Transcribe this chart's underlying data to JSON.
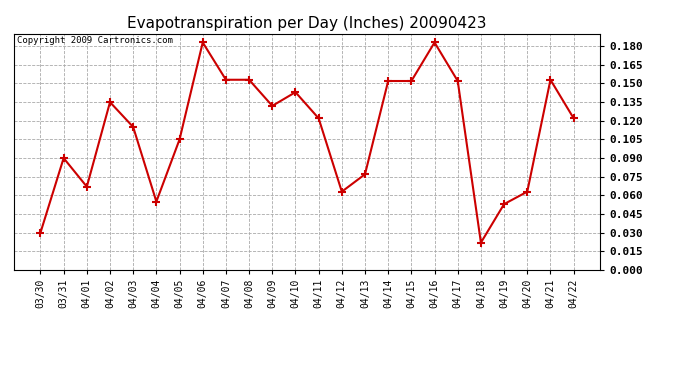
{
  "title": "Evapotranspiration per Day (Inches) 20090423",
  "copyright_text": "Copyright 2009 Cartronics.com",
  "dates": [
    "03/30",
    "03/31",
    "04/01",
    "04/02",
    "04/03",
    "04/04",
    "04/05",
    "04/06",
    "04/07",
    "04/08",
    "04/09",
    "04/10",
    "04/11",
    "04/12",
    "04/13",
    "04/14",
    "04/15",
    "04/16",
    "04/17",
    "04/18",
    "04/19",
    "04/20",
    "04/21",
    "04/22"
  ],
  "values": [
    0.03,
    0.09,
    0.067,
    0.135,
    0.115,
    0.055,
    0.105,
    0.183,
    0.153,
    0.153,
    0.132,
    0.143,
    0.122,
    0.063,
    0.077,
    0.152,
    0.152,
    0.183,
    0.152,
    0.022,
    0.053,
    0.063,
    0.153,
    0.122
  ],
  "line_color": "#cc0000",
  "marker": "+",
  "marker_size": 6,
  "line_width": 1.5,
  "ylim": [
    0.0,
    0.19
  ],
  "yticks": [
    0.0,
    0.015,
    0.03,
    0.045,
    0.06,
    0.075,
    0.09,
    0.105,
    0.12,
    0.135,
    0.15,
    0.165,
    0.18
  ],
  "background_color": "#ffffff",
  "grid_color": "#aaaaaa",
  "title_fontsize": 11,
  "copyright_fontsize": 6.5,
  "tick_fontsize": 7,
  "y_tick_fontsize": 8
}
